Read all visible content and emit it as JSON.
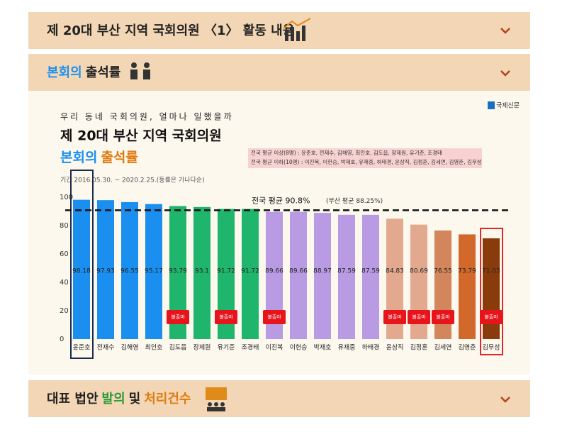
{
  "header": {
    "title": "제 20대 부산 지역 국회의원 〈1〉 활동 내용"
  },
  "section_attendance": {
    "title_parts": [
      "본회의",
      "출석률"
    ]
  },
  "chart_data": {
    "type": "bar",
    "kicker": "우리 동네 국회의원, 얼마나 일했을까",
    "title": "제 20대 부산 지역 국회의원",
    "subtitle_parts": [
      "본회의",
      "출석률"
    ],
    "source": "국제신문",
    "period": "기간 2016.05.30. ~ 2020.2.25.(동률은 가나다순)",
    "legend_lines": [
      "전국 평균 이상(8명) : 윤준호, 전재수, 김해영, 최인호, 김도읍, 장제원, 유기준, 조경태",
      "전국 평균 이하(10명) : 이진복, 이헌승, 박재호, 유재중, 하태경, 윤상직, 김정훈, 김세연, 김영춘, 김무성"
    ],
    "categories": [
      "윤준호",
      "전재수",
      "김해영",
      "최인호",
      "김도읍",
      "장제원",
      "유기준",
      "조경태",
      "이진복",
      "이헌승",
      "박재호",
      "유재중",
      "하태경",
      "윤상직",
      "김정훈",
      "김세연",
      "김영춘",
      "김무성"
    ],
    "values": [
      98.18,
      97.93,
      96.55,
      95.17,
      93.79,
      93.1,
      91.72,
      91.72,
      89.66,
      89.66,
      88.97,
      87.59,
      87.59,
      84.83,
      80.69,
      76.55,
      73.79,
      71.03
    ],
    "colors": [
      "#1a8ff0",
      "#1a8ff0",
      "#1a8ff0",
      "#1a8ff0",
      "#1fb56c",
      "#1fb56c",
      "#1fb56c",
      "#1fb56c",
      "#b89be3",
      "#b89be3",
      "#b89be3",
      "#b89be3",
      "#b89be3",
      "#e2a98e",
      "#e2a98e",
      "#d3855c",
      "#d2692b",
      "#8a3b0b"
    ],
    "tags": [
      null,
      null,
      null,
      null,
      "불출마",
      null,
      "불출마",
      null,
      "불출마",
      null,
      null,
      null,
      null,
      "불출마",
      "불출마",
      "불출마",
      null,
      "불출마"
    ],
    "outlines": [
      "#1c2b4b",
      null,
      null,
      null,
      null,
      null,
      null,
      null,
      null,
      null,
      null,
      null,
      null,
      null,
      null,
      null,
      null,
      "#e3262a"
    ],
    "reference_line": {
      "value": 90.8,
      "label": "전국 평균 90.8%",
      "note": "(부산 평균 88.25%)"
    },
    "ylim": [
      0,
      100
    ],
    "yticks": [
      0,
      20,
      40,
      60,
      80,
      100
    ]
  },
  "section_bills": {
    "title_parts": [
      "대표 법안",
      "발의",
      "및",
      "처리건수"
    ]
  }
}
